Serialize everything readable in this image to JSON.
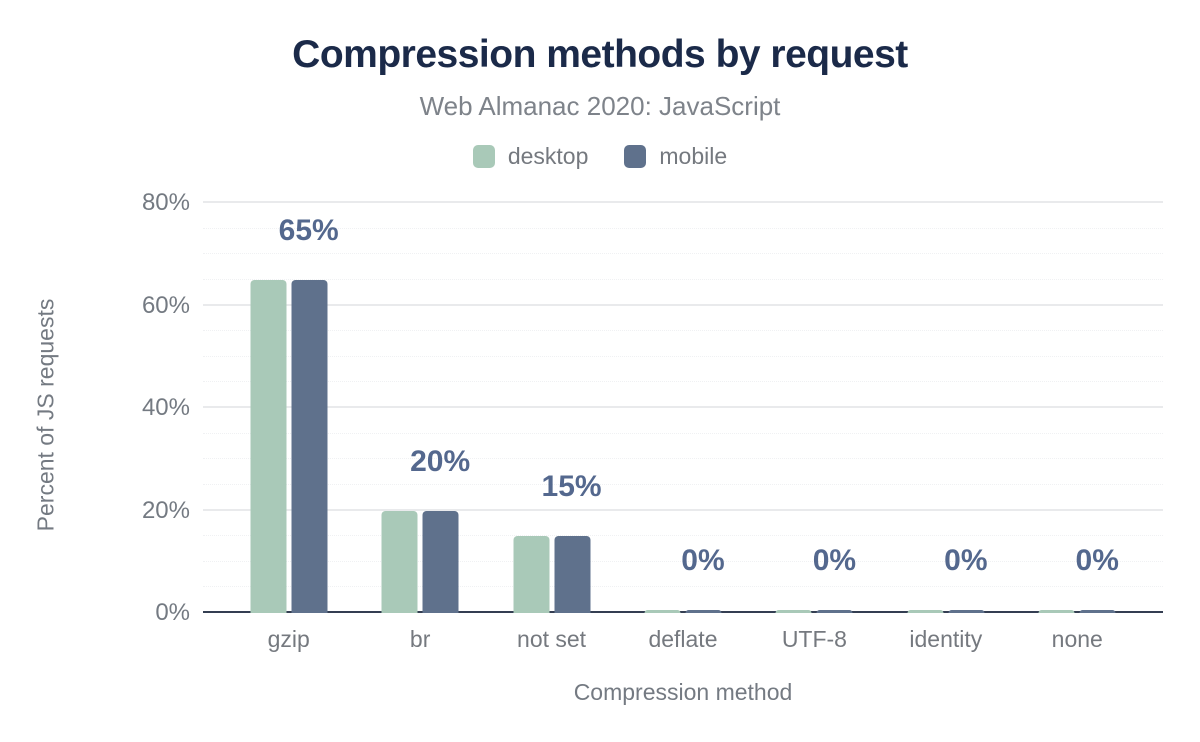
{
  "header": {
    "title": "Compression methods by request",
    "subtitle": "Web Almanac 2020: JavaScript"
  },
  "chart_data": {
    "type": "bar",
    "title": "Compression methods by request",
    "subtitle": "Web Almanac 2020: JavaScript",
    "categories": [
      "gzip",
      "br",
      "not set",
      "deflate",
      "UTF-8",
      "identity",
      "none"
    ],
    "series": [
      {
        "name": "desktop",
        "color": "#a9c9b8",
        "values": [
          65,
          20,
          15,
          0,
          0,
          0,
          0
        ]
      },
      {
        "name": "mobile",
        "color": "#5f718c",
        "values": [
          65,
          20,
          15,
          0,
          0,
          0,
          0
        ]
      }
    ],
    "data_labels": [
      "65%",
      "20%",
      "15%",
      "0%",
      "0%",
      "0%",
      "0%"
    ],
    "xlabel": "Compression method",
    "ylabel": "Percent of JS requests",
    "y_ticks": [
      "0%",
      "20%",
      "40%",
      "60%",
      "80%"
    ],
    "ylim": [
      0,
      80
    ],
    "major_tick_step": 20,
    "minor_tick_step": 5,
    "grid": true,
    "legend_position": "top"
  },
  "colors": {
    "title": "#1b2a49",
    "subtitle": "#7e838a",
    "axis_text": "#747a82",
    "data_label": "#54688e",
    "desktop": "#a9c9b8",
    "mobile": "#5f718c",
    "major_gridline": "#e9eaec",
    "minor_gridline": "#f0f1f3",
    "axis_line": "#343e52"
  }
}
